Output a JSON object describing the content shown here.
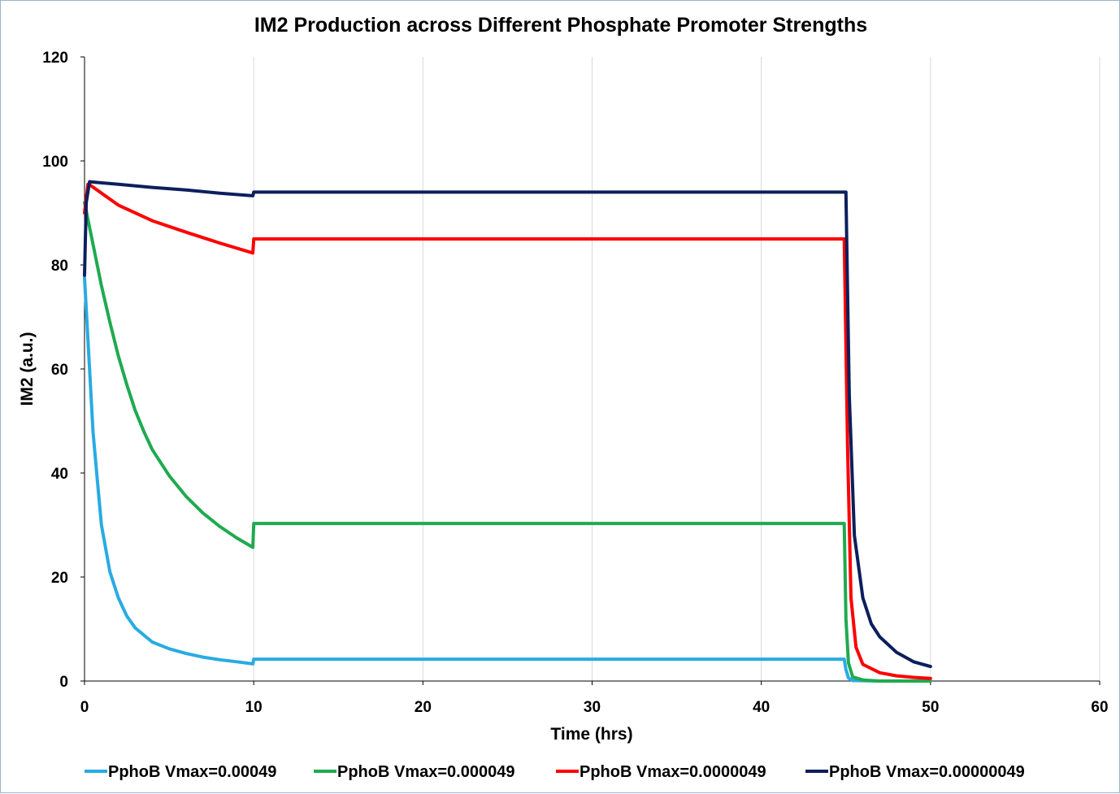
{
  "chart_data": {
    "type": "line",
    "title": "IM2 Production across Different Phosphate Promoter Strengths",
    "xlabel": "Time (hrs)",
    "ylabel": "IM2 (a.u.)",
    "xlim": [
      0,
      60
    ],
    "ylim": [
      0,
      120
    ],
    "x_ticks": [
      0,
      10,
      20,
      30,
      40,
      50,
      60
    ],
    "y_ticks": [
      0,
      20,
      40,
      60,
      80,
      100,
      120
    ],
    "grid": "vertical gridlines",
    "legend_position": "bottom",
    "series": [
      {
        "name": "PphoB Vmax=0.00049",
        "color": "#29abe2",
        "points": [
          [
            0,
            77.5
          ],
          [
            0.3,
            60
          ],
          [
            0.5,
            48
          ],
          [
            0.8,
            37
          ],
          [
            1,
            30
          ],
          [
            1.5,
            21
          ],
          [
            2,
            16
          ],
          [
            2.5,
            12.5
          ],
          [
            3,
            10.2
          ],
          [
            4,
            7.5
          ],
          [
            5,
            6.2
          ],
          [
            6,
            5.3
          ],
          [
            7,
            4.6
          ],
          [
            8,
            4.1
          ],
          [
            9,
            3.7
          ],
          [
            9.95,
            3.3
          ],
          [
            10,
            4.2
          ],
          [
            20,
            4.2
          ],
          [
            30,
            4.2
          ],
          [
            40,
            4.2
          ],
          [
            44.9,
            4.2
          ],
          [
            45,
            2.2
          ],
          [
            45.15,
            0.6
          ],
          [
            45.4,
            0.1
          ],
          [
            47,
            0
          ],
          [
            50,
            0
          ]
        ]
      },
      {
        "name": "PphoB Vmax=0.000049",
        "color": "#1faa50",
        "points": [
          [
            0,
            92
          ],
          [
            0.5,
            84
          ],
          [
            1,
            76
          ],
          [
            1.5,
            69
          ],
          [
            2,
            62.5
          ],
          [
            2.5,
            57
          ],
          [
            3,
            52
          ],
          [
            3.5,
            48
          ],
          [
            4,
            44.5
          ],
          [
            5,
            39.5
          ],
          [
            6,
            35.5
          ],
          [
            7,
            32.3
          ],
          [
            8,
            29.7
          ],
          [
            9,
            27.5
          ],
          [
            9.95,
            25.7
          ],
          [
            10,
            30.3
          ],
          [
            20,
            30.3
          ],
          [
            30,
            30.3
          ],
          [
            40,
            30.3
          ],
          [
            44.9,
            30.3
          ],
          [
            45,
            12
          ],
          [
            45.15,
            3.5
          ],
          [
            45.4,
            0.8
          ],
          [
            46,
            0.2
          ],
          [
            47,
            0
          ],
          [
            50,
            0
          ]
        ]
      },
      {
        "name": "PphoB Vmax=0.0000049",
        "color": "#ff0000",
        "points": [
          [
            0,
            90
          ],
          [
            0.2,
            95.5
          ],
          [
            0.4,
            95.2
          ],
          [
            2,
            91.5
          ],
          [
            4,
            88.5
          ],
          [
            6,
            86.3
          ],
          [
            8,
            84.2
          ],
          [
            9.95,
            82.3
          ],
          [
            10,
            85
          ],
          [
            20,
            85
          ],
          [
            30,
            85
          ],
          [
            40,
            85
          ],
          [
            44.9,
            85
          ],
          [
            45.1,
            45
          ],
          [
            45.3,
            16
          ],
          [
            45.6,
            6.5
          ],
          [
            46,
            3.2
          ],
          [
            47,
            1.6
          ],
          [
            48,
            1
          ],
          [
            49,
            0.7
          ],
          [
            50,
            0.5
          ]
        ]
      },
      {
        "name": "PphoB Vmax=0.00000049",
        "color": "#0c1f5c",
        "points": [
          [
            0,
            78
          ],
          [
            0.1,
            92
          ],
          [
            0.3,
            96
          ],
          [
            2,
            95.5
          ],
          [
            4,
            94.9
          ],
          [
            6,
            94.4
          ],
          [
            8,
            93.8
          ],
          [
            9.95,
            93.3
          ],
          [
            10,
            94
          ],
          [
            20,
            94
          ],
          [
            30,
            94
          ],
          [
            40,
            94
          ],
          [
            45,
            94
          ],
          [
            45.2,
            55
          ],
          [
            45.5,
            28
          ],
          [
            46,
            16
          ],
          [
            46.5,
            11
          ],
          [
            47,
            8.5
          ],
          [
            48,
            5.5
          ],
          [
            49,
            3.7
          ],
          [
            50,
            2.8
          ]
        ]
      }
    ]
  }
}
